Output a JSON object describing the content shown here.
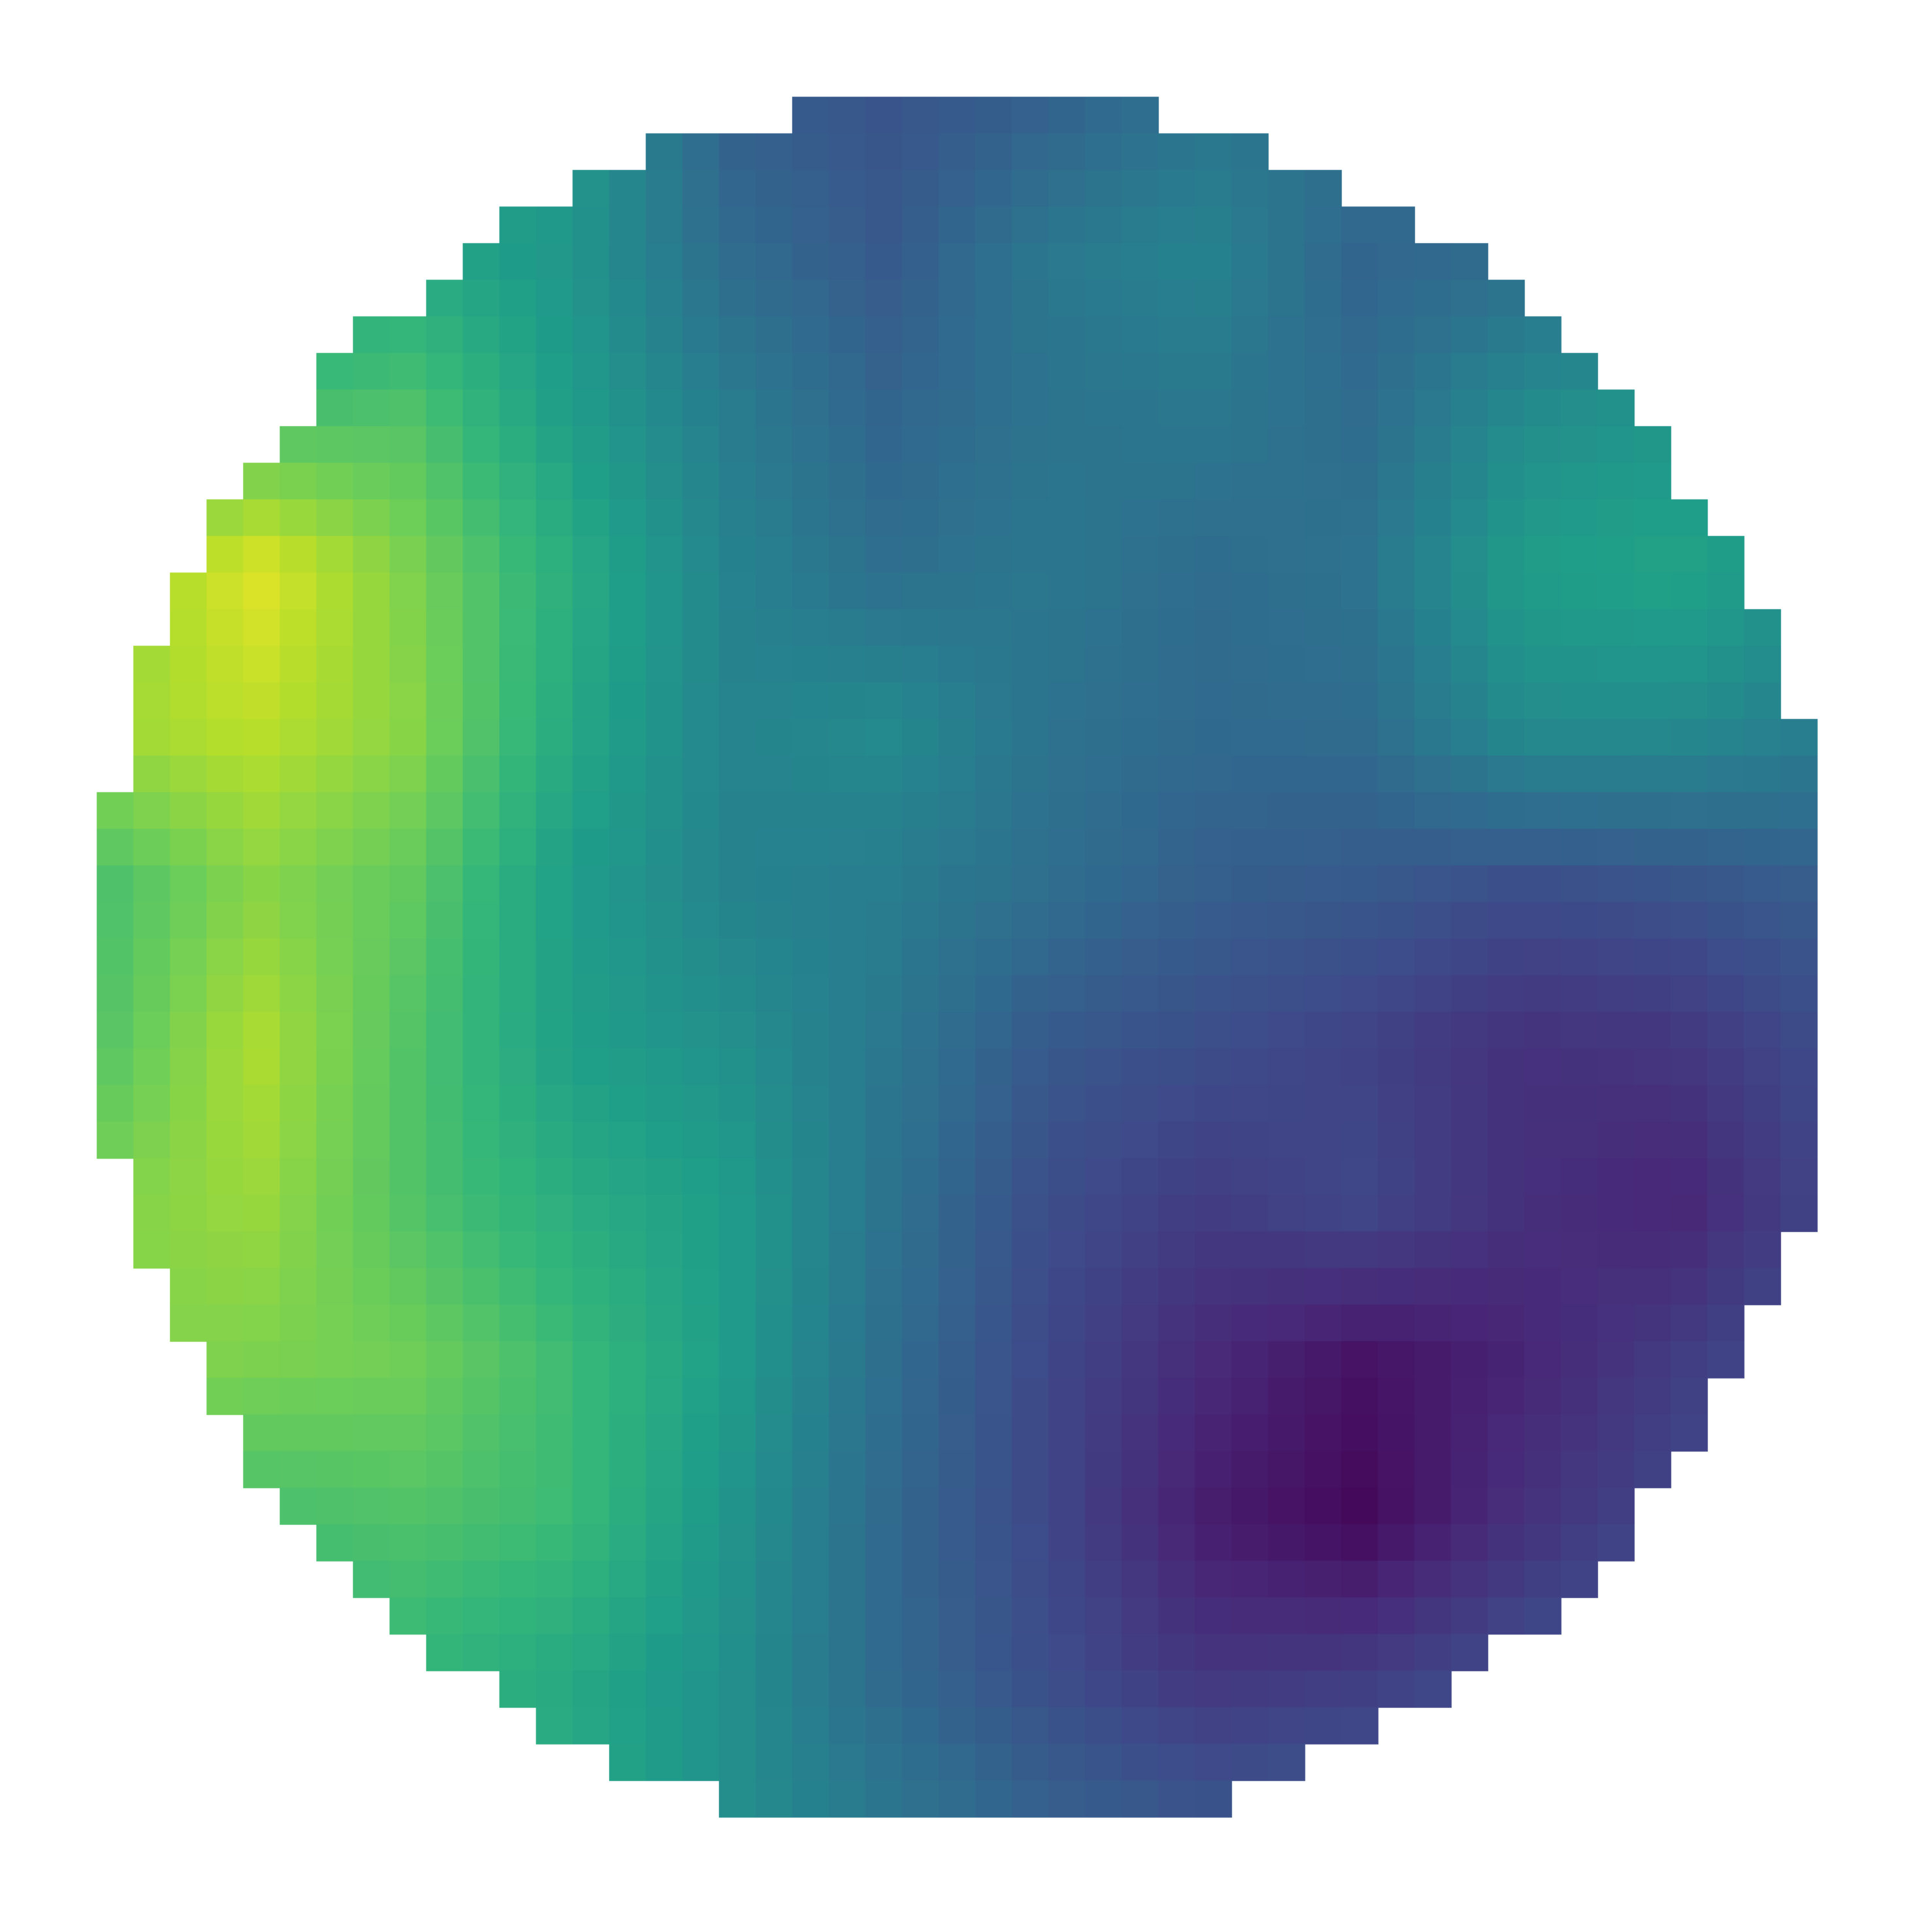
{
  "chart_data": {
    "type": "heatmap",
    "title": "",
    "xlabel": "",
    "ylabel": "",
    "mask": "circle",
    "axes_visible": false,
    "grid": false,
    "legend": "none",
    "colormap": "viridis",
    "colormap_stops": [
      "#440154",
      "#482878",
      "#3e4989",
      "#31688e",
      "#26828e",
      "#1f9e89",
      "#35b779",
      "#6ece58",
      "#b5de2b",
      "#fde725"
    ],
    "value_range": [
      0,
      1
    ],
    "grid_size": [
      12,
      12
    ],
    "values": [
      [
        0.55,
        0.55,
        0.55,
        0.55,
        0.3,
        0.26,
        0.3,
        0.38,
        0.38,
        0.38,
        0.38,
        0.38
      ],
      [
        0.55,
        0.55,
        0.6,
        0.52,
        0.35,
        0.28,
        0.4,
        0.45,
        0.32,
        0.35,
        0.4,
        0.4
      ],
      [
        0.6,
        0.7,
        0.72,
        0.55,
        0.42,
        0.32,
        0.38,
        0.4,
        0.35,
        0.48,
        0.52,
        0.5
      ],
      [
        0.8,
        0.96,
        0.8,
        0.62,
        0.45,
        0.36,
        0.4,
        0.35,
        0.38,
        0.55,
        0.58,
        0.5
      ],
      [
        0.85,
        0.9,
        0.82,
        0.6,
        0.45,
        0.48,
        0.38,
        0.34,
        0.35,
        0.48,
        0.48,
        0.42
      ],
      [
        0.7,
        0.82,
        0.75,
        0.55,
        0.45,
        0.42,
        0.36,
        0.3,
        0.28,
        0.24,
        0.26,
        0.3
      ],
      [
        0.72,
        0.88,
        0.72,
        0.56,
        0.5,
        0.4,
        0.28,
        0.24,
        0.2,
        0.14,
        0.16,
        0.24
      ],
      [
        0.8,
        0.85,
        0.72,
        0.62,
        0.55,
        0.38,
        0.24,
        0.18,
        0.22,
        0.14,
        0.1,
        0.22
      ],
      [
        0.82,
        0.8,
        0.78,
        0.68,
        0.55,
        0.36,
        0.22,
        0.12,
        0.05,
        0.1,
        0.18,
        0.26
      ],
      [
        0.76,
        0.7,
        0.72,
        0.68,
        0.52,
        0.34,
        0.22,
        0.08,
        0.02,
        0.14,
        0.22,
        0.3
      ],
      [
        0.72,
        0.62,
        0.66,
        0.6,
        0.5,
        0.34,
        0.24,
        0.16,
        0.18,
        0.24,
        0.3,
        0.34
      ],
      [
        0.7,
        0.7,
        0.74,
        0.62,
        0.5,
        0.4,
        0.32,
        0.28,
        0.3,
        0.32,
        0.34,
        0.34
      ]
    ]
  }
}
